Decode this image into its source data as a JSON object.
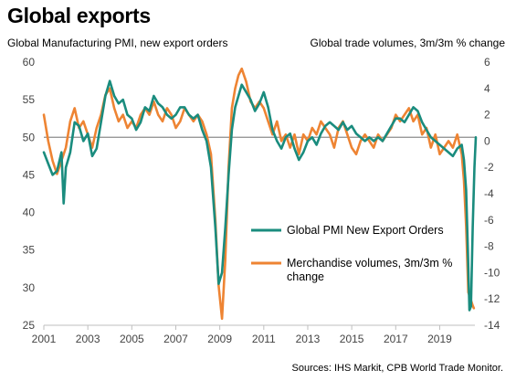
{
  "title": "Global exports",
  "source": "Sources: IHS Markit, CPB World Trade Monitor.",
  "chart_data": {
    "type": "line",
    "ylabel_left": "Global Manufacturing PMI, new export orders",
    "ylabel_right": "Global trade volumes, 3m/3m % change",
    "x_ticks": [
      "2001",
      "2003",
      "2005",
      "2007",
      "2009",
      "2011",
      "2013",
      "2015",
      "2017",
      "2019"
    ],
    "x_range": [
      2001.0,
      2020.6
    ],
    "ylim_left": [
      25,
      60
    ],
    "yticks_left": [
      25,
      30,
      35,
      40,
      45,
      50,
      55,
      60
    ],
    "ylim_right": [
      -14,
      6
    ],
    "yticks_right": [
      -14,
      -12,
      -10,
      -8,
      -6,
      -4,
      -2,
      0,
      2,
      4,
      6
    ],
    "reference_line": 50,
    "grid": false,
    "legend_position": "right-middle",
    "series": [
      {
        "name": "Global PMI New Export Orders",
        "axis": "left",
        "color": "#1a8c7e",
        "points": [
          [
            2001.0,
            48.0
          ],
          [
            2001.2,
            46.5
          ],
          [
            2001.4,
            45.0
          ],
          [
            2001.6,
            45.5
          ],
          [
            2001.8,
            48.0
          ],
          [
            2001.9,
            41.2
          ],
          [
            2002.0,
            46.0
          ],
          [
            2002.2,
            48.0
          ],
          [
            2002.4,
            52.0
          ],
          [
            2002.6,
            51.5
          ],
          [
            2002.8,
            49.5
          ],
          [
            2003.0,
            50.5
          ],
          [
            2003.2,
            47.5
          ],
          [
            2003.4,
            48.5
          ],
          [
            2003.6,
            52.0
          ],
          [
            2003.8,
            55.5
          ],
          [
            2004.0,
            57.5
          ],
          [
            2004.2,
            55.5
          ],
          [
            2004.4,
            54.5
          ],
          [
            2004.6,
            55.0
          ],
          [
            2004.8,
            53.0
          ],
          [
            2005.0,
            52.5
          ],
          [
            2005.2,
            51.0
          ],
          [
            2005.4,
            52.0
          ],
          [
            2005.6,
            54.0
          ],
          [
            2005.8,
            53.5
          ],
          [
            2006.0,
            55.5
          ],
          [
            2006.2,
            54.5
          ],
          [
            2006.4,
            54.0
          ],
          [
            2006.6,
            53.0
          ],
          [
            2006.8,
            52.5
          ],
          [
            2007.0,
            53.0
          ],
          [
            2007.2,
            54.0
          ],
          [
            2007.4,
            54.0
          ],
          [
            2007.6,
            53.0
          ],
          [
            2007.8,
            52.5
          ],
          [
            2008.0,
            53.0
          ],
          [
            2008.2,
            51.0
          ],
          [
            2008.4,
            49.5
          ],
          [
            2008.6,
            46.0
          ],
          [
            2008.8,
            38.0
          ],
          [
            2008.95,
            30.5
          ],
          [
            2009.1,
            32.0
          ],
          [
            2009.25,
            38.0
          ],
          [
            2009.4,
            45.0
          ],
          [
            2009.55,
            51.0
          ],
          [
            2009.7,
            54.0
          ],
          [
            2009.85,
            55.5
          ],
          [
            2010.0,
            57.0
          ],
          [
            2010.2,
            56.0
          ],
          [
            2010.4,
            55.0
          ],
          [
            2010.6,
            53.5
          ],
          [
            2010.8,
            54.5
          ],
          [
            2011.0,
            56.0
          ],
          [
            2011.2,
            54.0
          ],
          [
            2011.4,
            51.0
          ],
          [
            2011.6,
            49.5
          ],
          [
            2011.8,
            48.5
          ],
          [
            2012.0,
            50.0
          ],
          [
            2012.2,
            50.5
          ],
          [
            2012.4,
            48.5
          ],
          [
            2012.6,
            47.0
          ],
          [
            2012.8,
            48.0
          ],
          [
            2013.0,
            49.5
          ],
          [
            2013.2,
            50.0
          ],
          [
            2013.4,
            49.0
          ],
          [
            2013.6,
            50.5
          ],
          [
            2013.8,
            51.5
          ],
          [
            2014.0,
            52.0
          ],
          [
            2014.2,
            51.5
          ],
          [
            2014.4,
            51.0
          ],
          [
            2014.6,
            52.0
          ],
          [
            2014.8,
            51.0
          ],
          [
            2015.0,
            51.5
          ],
          [
            2015.2,
            50.5
          ],
          [
            2015.4,
            50.0
          ],
          [
            2015.6,
            49.5
          ],
          [
            2015.8,
            50.0
          ],
          [
            2016.0,
            49.5
          ],
          [
            2016.2,
            50.0
          ],
          [
            2016.4,
            49.5
          ],
          [
            2016.6,
            50.5
          ],
          [
            2016.8,
            51.5
          ],
          [
            2017.0,
            52.5
          ],
          [
            2017.2,
            52.5
          ],
          [
            2017.4,
            52.0
          ],
          [
            2017.6,
            53.0
          ],
          [
            2017.8,
            54.0
          ],
          [
            2018.0,
            53.5
          ],
          [
            2018.2,
            52.0
          ],
          [
            2018.4,
            51.0
          ],
          [
            2018.6,
            50.0
          ],
          [
            2018.8,
            49.5
          ],
          [
            2019.0,
            49.0
          ],
          [
            2019.2,
            48.5
          ],
          [
            2019.4,
            48.0
          ],
          [
            2019.6,
            47.5
          ],
          [
            2019.8,
            48.5
          ],
          [
            2020.0,
            49.0
          ],
          [
            2020.1,
            47.0
          ],
          [
            2020.2,
            43.0
          ],
          [
            2020.28,
            35.0
          ],
          [
            2020.35,
            27.0
          ],
          [
            2020.42,
            27.5
          ],
          [
            2020.5,
            38.0
          ],
          [
            2020.58,
            46.0
          ],
          [
            2020.64,
            50.0
          ]
        ]
      },
      {
        "name": "Merchandise volumes, 3m/3m % change",
        "axis": "right",
        "color": "#ee8433",
        "points": [
          [
            2001.0,
            2.0
          ],
          [
            2001.2,
            0.0
          ],
          [
            2001.4,
            -1.5
          ],
          [
            2001.6,
            -2.5
          ],
          [
            2001.8,
            -1.5
          ],
          [
            2002.0,
            -0.5
          ],
          [
            2002.2,
            1.5
          ],
          [
            2002.4,
            2.5
          ],
          [
            2002.6,
            1.0
          ],
          [
            2002.8,
            1.5
          ],
          [
            2003.0,
            0.5
          ],
          [
            2003.2,
            -0.5
          ],
          [
            2003.4,
            1.0
          ],
          [
            2003.6,
            2.0
          ],
          [
            2003.8,
            3.5
          ],
          [
            2004.0,
            4.0
          ],
          [
            2004.2,
            2.5
          ],
          [
            2004.4,
            1.5
          ],
          [
            2004.6,
            2.0
          ],
          [
            2004.8,
            1.0
          ],
          [
            2005.0,
            1.5
          ],
          [
            2005.2,
            1.0
          ],
          [
            2005.4,
            2.0
          ],
          [
            2005.6,
            2.5
          ],
          [
            2005.8,
            2.0
          ],
          [
            2006.0,
            3.0
          ],
          [
            2006.2,
            2.0
          ],
          [
            2006.4,
            1.5
          ],
          [
            2006.6,
            2.5
          ],
          [
            2006.8,
            2.0
          ],
          [
            2007.0,
            1.0
          ],
          [
            2007.2,
            1.5
          ],
          [
            2007.4,
            2.5
          ],
          [
            2007.6,
            2.0
          ],
          [
            2007.8,
            1.5
          ],
          [
            2008.0,
            2.0
          ],
          [
            2008.2,
            1.5
          ],
          [
            2008.4,
            0.5
          ],
          [
            2008.6,
            -1.0
          ],
          [
            2008.8,
            -6.0
          ],
          [
            2008.95,
            -11.0
          ],
          [
            2009.1,
            -13.5
          ],
          [
            2009.25,
            -9.0
          ],
          [
            2009.4,
            -2.0
          ],
          [
            2009.55,
            2.5
          ],
          [
            2009.7,
            4.0
          ],
          [
            2009.85,
            5.0
          ],
          [
            2010.0,
            5.5
          ],
          [
            2010.2,
            4.5
          ],
          [
            2010.4,
            3.0
          ],
          [
            2010.6,
            2.5
          ],
          [
            2010.8,
            3.0
          ],
          [
            2011.0,
            2.5
          ],
          [
            2011.2,
            1.5
          ],
          [
            2011.4,
            0.5
          ],
          [
            2011.6,
            1.5
          ],
          [
            2011.8,
            0.0
          ],
          [
            2012.0,
            0.5
          ],
          [
            2012.2,
            -0.5
          ],
          [
            2012.4,
            0.5
          ],
          [
            2012.6,
            -1.0
          ],
          [
            2012.8,
            0.5
          ],
          [
            2013.0,
            0.0
          ],
          [
            2013.2,
            1.0
          ],
          [
            2013.4,
            0.5
          ],
          [
            2013.6,
            1.5
          ],
          [
            2013.8,
            1.0
          ],
          [
            2014.0,
            0.5
          ],
          [
            2014.2,
            -0.5
          ],
          [
            2014.4,
            1.0
          ],
          [
            2014.6,
            1.5
          ],
          [
            2014.8,
            0.5
          ],
          [
            2015.0,
            -0.5
          ],
          [
            2015.2,
            -1.0
          ],
          [
            2015.4,
            0.0
          ],
          [
            2015.6,
            0.5
          ],
          [
            2015.8,
            0.0
          ],
          [
            2016.0,
            -0.5
          ],
          [
            2016.2,
            0.5
          ],
          [
            2016.4,
            0.0
          ],
          [
            2016.6,
            0.5
          ],
          [
            2016.8,
            1.0
          ],
          [
            2017.0,
            2.0
          ],
          [
            2017.2,
            1.5
          ],
          [
            2017.4,
            2.0
          ],
          [
            2017.6,
            2.5
          ],
          [
            2017.8,
            1.5
          ],
          [
            2018.0,
            2.0
          ],
          [
            2018.2,
            0.5
          ],
          [
            2018.4,
            1.0
          ],
          [
            2018.6,
            -0.5
          ],
          [
            2018.8,
            0.5
          ],
          [
            2019.0,
            -1.0
          ],
          [
            2019.2,
            -0.5
          ],
          [
            2019.4,
            0.0
          ],
          [
            2019.6,
            -0.5
          ],
          [
            2019.8,
            0.5
          ],
          [
            2020.0,
            -1.0
          ],
          [
            2020.1,
            -3.0
          ],
          [
            2020.2,
            -6.5
          ],
          [
            2020.3,
            -11.5
          ],
          [
            2020.4,
            -12.0
          ],
          [
            2020.5,
            -12.5
          ],
          [
            2020.55,
            -12.7
          ]
        ]
      }
    ]
  }
}
